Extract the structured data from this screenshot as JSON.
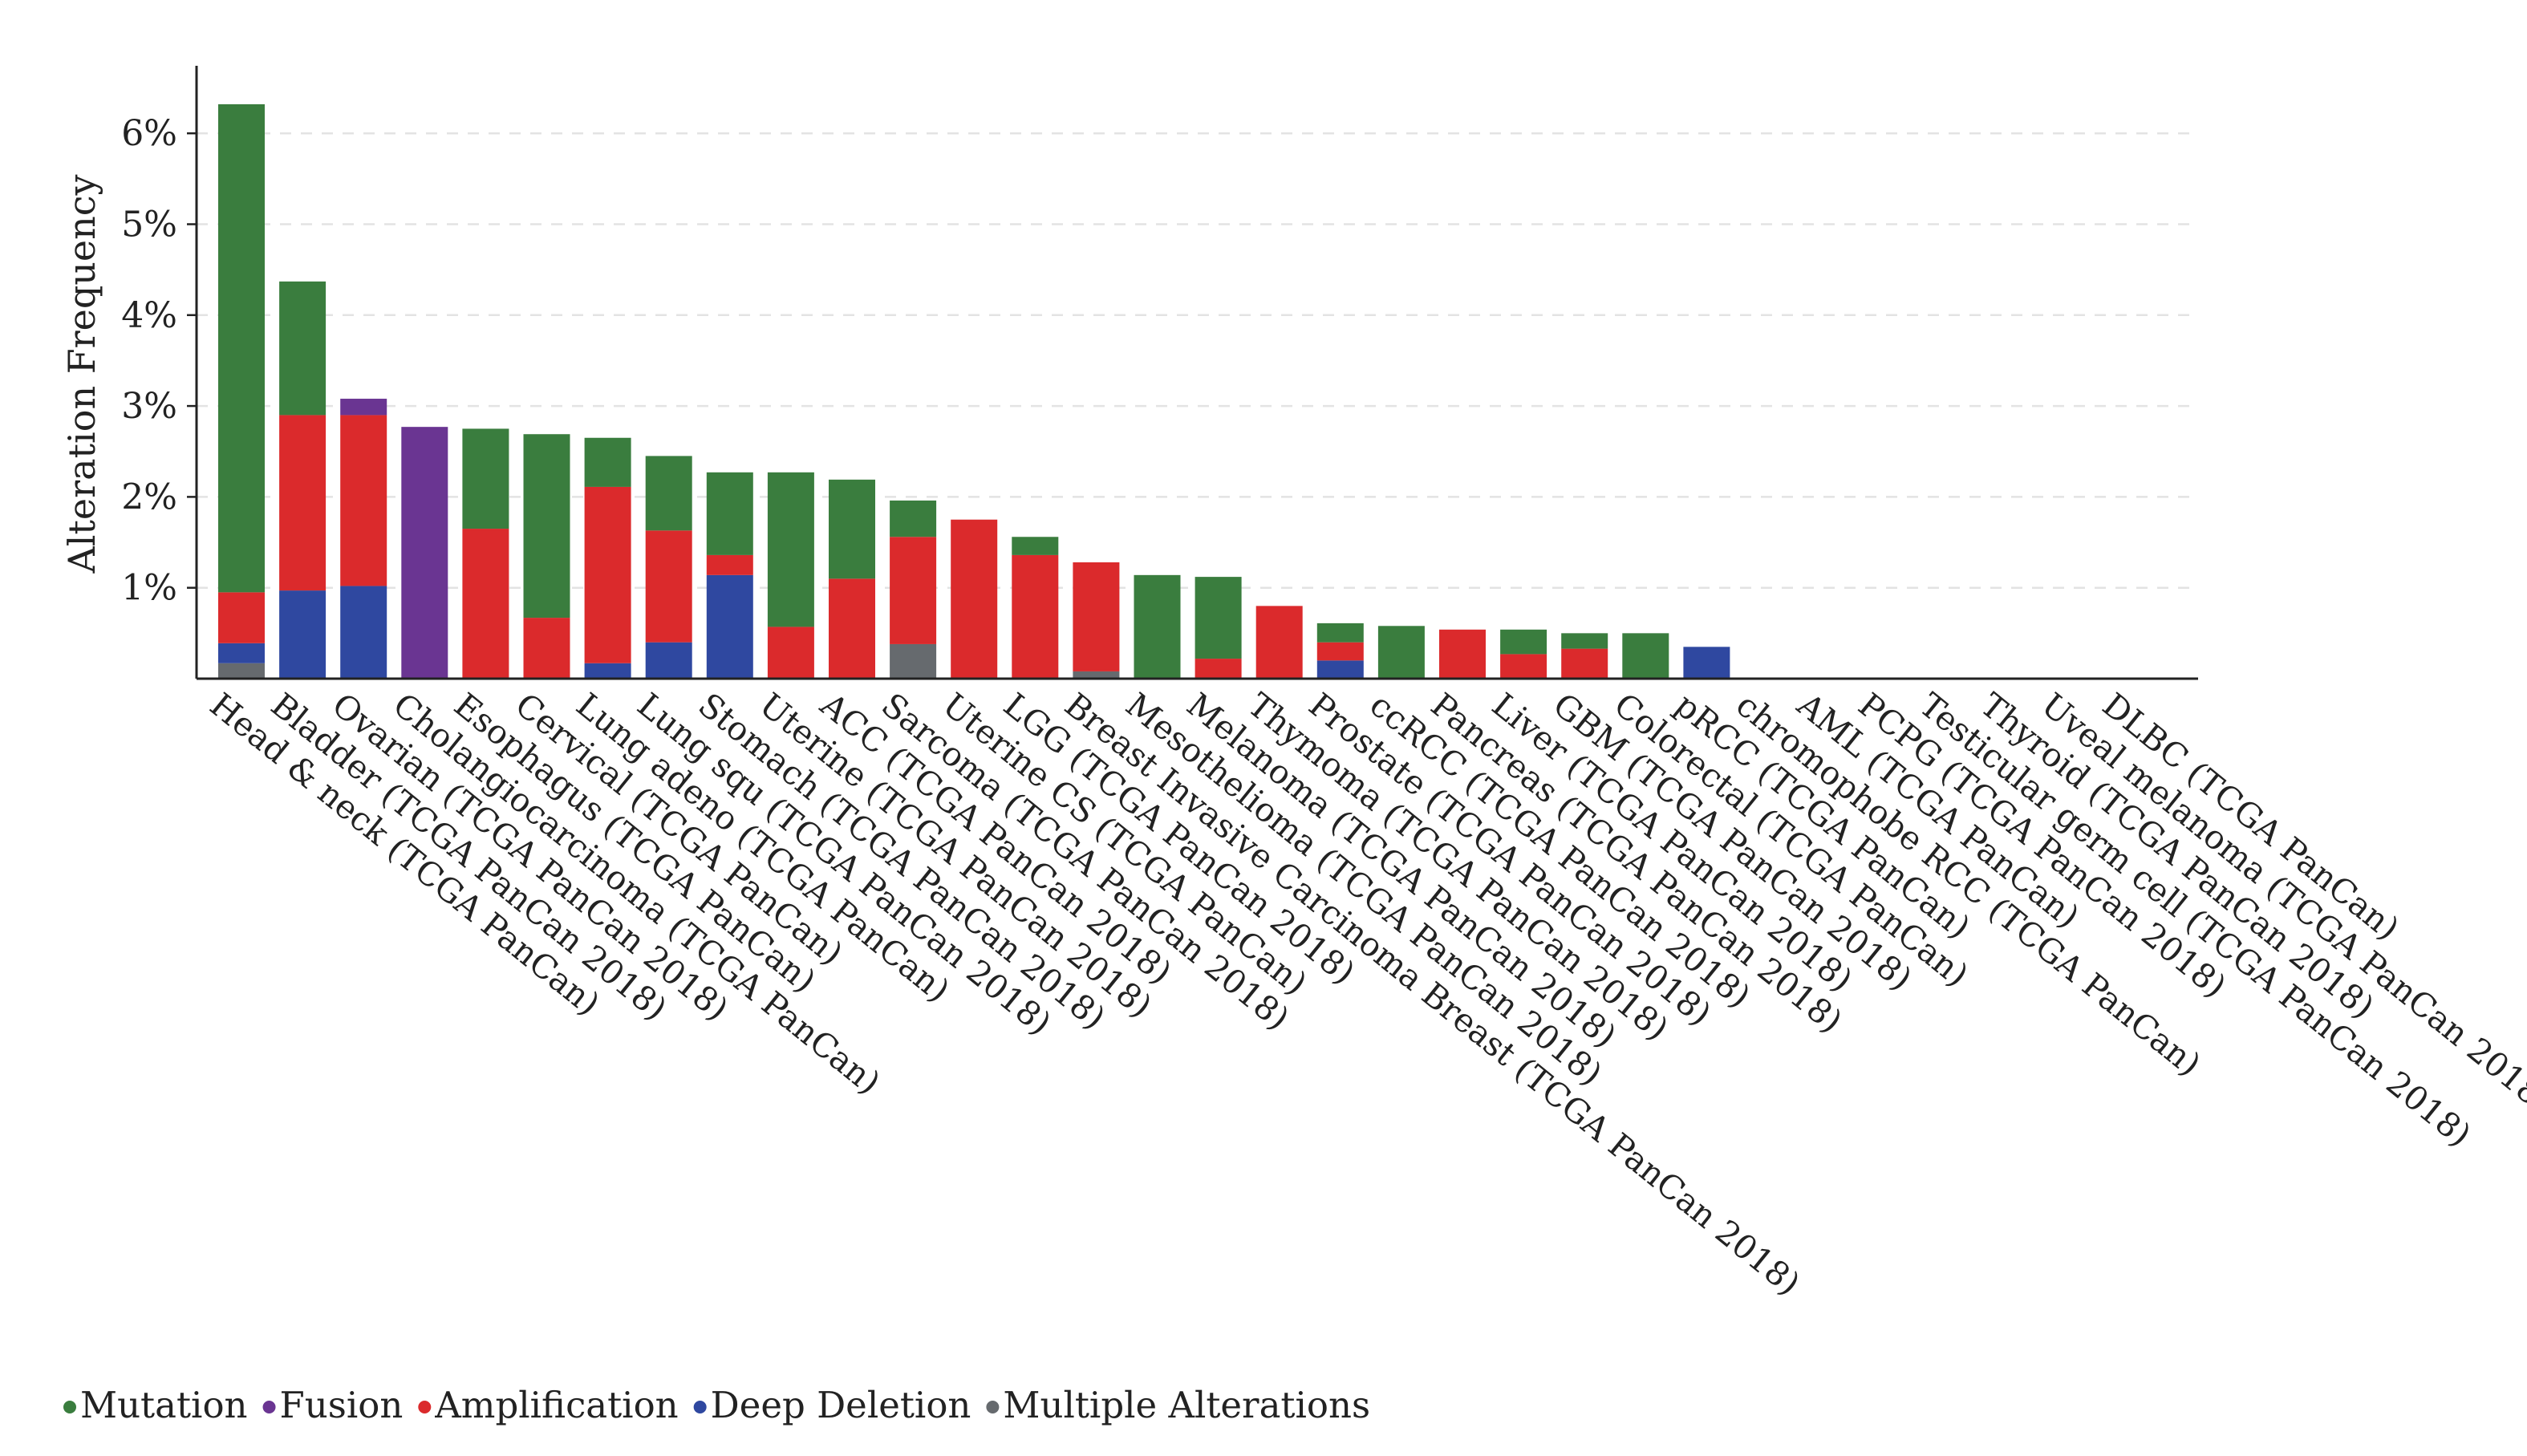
{
  "chart_data": {
    "type": "bar",
    "stacked": true,
    "title": "",
    "xlabel": "",
    "ylabel": "Alteration Frequency",
    "ylim": [
      0,
      7
    ],
    "yticks": [
      1,
      2,
      3,
      4,
      5,
      6
    ],
    "yticks_labels": [
      "1%",
      "2%",
      "3%",
      "4%",
      "5%",
      "6%"
    ],
    "grid": "horizontal dashed",
    "legend_position": "bottom-left",
    "categories": [
      "Head & neck (TCGA PanCan)",
      "Bladder (TCGA PanCan 2018)",
      "Ovarian (TCGA PanCan 2018)",
      "Cholangiocarcinoma (TCGA PanCan)",
      "Esophagus (TCGA PanCan)",
      "Cervical (TCGA PanCan)",
      "Lung adeno (TCGA PanCan)",
      "Lung squ (TCGA PanCan 2018)",
      "Stomach (TCGA PanCan 2018)",
      "Uterine (TCGA PanCan 2018)",
      "ACC (TCGA PanCan 2018)",
      "Sarcoma (TCGA PanCan 2018)",
      "Uterine CS (TCGA PanCan)",
      "LGG (TCGA PanCan 2018)",
      "Breast Invasive Carcinoma Breast (TCGA PanCan 2018)",
      "Mesothelioma (TCGA PanCan 2018)",
      "Melanoma (TCGA PanCan 2018)",
      "Thymoma (TCGA PanCan 2018)",
      "Prostate (TCGA PanCan 2018)",
      "ccRCC (TCGA PanCan 2018)",
      "Pancreas (TCGA PanCan 2018)",
      "Liver (TCGA PanCan 2018)",
      "GBM (TCGA PanCan 2018)",
      "Colorectal (TCGA PanCan)",
      "pRCC (TCGA PanCan)",
      "chromophobe RCC (TCGA PanCan)",
      "AML (TCGA PanCan)",
      "PCPG (TCGA PanCan 2018)",
      "Testicular germ cell (TCGA PanCan 2018)",
      "Thyroid (TCGA PanCan 2018)",
      "Uveal melanoma (TCGA PanCan 2018)",
      "DLBC (TCGA PanCan)"
    ],
    "series": [
      {
        "name": "Multiple Alterations",
        "color": "#666a6e",
        "values": [
          0.17,
          0,
          0,
          0,
          0,
          0,
          0,
          0,
          0,
          0,
          0,
          0.38,
          0,
          0,
          0.08,
          0,
          0,
          0,
          0,
          0,
          0,
          0,
          0,
          0,
          0,
          0,
          0,
          0,
          0,
          0,
          0,
          0
        ]
      },
      {
        "name": "Deep Deletion",
        "color": "#2f48a0",
        "values": [
          0.22,
          0.97,
          1.02,
          0,
          0,
          0,
          0.17,
          0.4,
          1.14,
          0,
          0,
          0,
          0,
          0,
          0,
          0,
          0,
          0,
          0.2,
          0,
          0,
          0,
          0,
          0,
          0.35,
          0,
          0,
          0,
          0,
          0,
          0,
          0
        ]
      },
      {
        "name": "Amplification",
        "color": "#db2a2c",
        "values": [
          0.56,
          1.93,
          1.88,
          0,
          1.65,
          0.67,
          1.94,
          1.23,
          0.22,
          0.57,
          1.1,
          1.18,
          1.75,
          1.36,
          1.2,
          0,
          0.22,
          0.8,
          0.2,
          0,
          0.54,
          0.27,
          0.33,
          0,
          0,
          0,
          0,
          0,
          0,
          0,
          0,
          0
        ]
      },
      {
        "name": "Fusion",
        "color": "#6a3592",
        "values": [
          0,
          0,
          0.18,
          2.77,
          0,
          0,
          0,
          0,
          0,
          0,
          0,
          0,
          0,
          0,
          0,
          0,
          0,
          0,
          0,
          0,
          0,
          0,
          0,
          0,
          0,
          0,
          0,
          0,
          0,
          0,
          0,
          0
        ]
      },
      {
        "name": "Mutation",
        "color": "#3a7d3e",
        "values": [
          5.37,
          1.47,
          0,
          0,
          1.1,
          2.02,
          0.54,
          0.82,
          0.91,
          1.7,
          1.09,
          0.4,
          0,
          0.2,
          0,
          1.14,
          0.9,
          0,
          0.21,
          0.58,
          0,
          0.27,
          0.17,
          0.5,
          0,
          0,
          0,
          0,
          0,
          0,
          0,
          0
        ]
      }
    ],
    "legend": [
      {
        "name": "Mutation",
        "color": "#3a7d3e"
      },
      {
        "name": "Fusion",
        "color": "#6a3592"
      },
      {
        "name": "Amplification",
        "color": "#db2a2c"
      },
      {
        "name": "Deep Deletion",
        "color": "#2f48a0"
      },
      {
        "name": "Multiple Alterations",
        "color": "#666a6e"
      }
    ]
  }
}
